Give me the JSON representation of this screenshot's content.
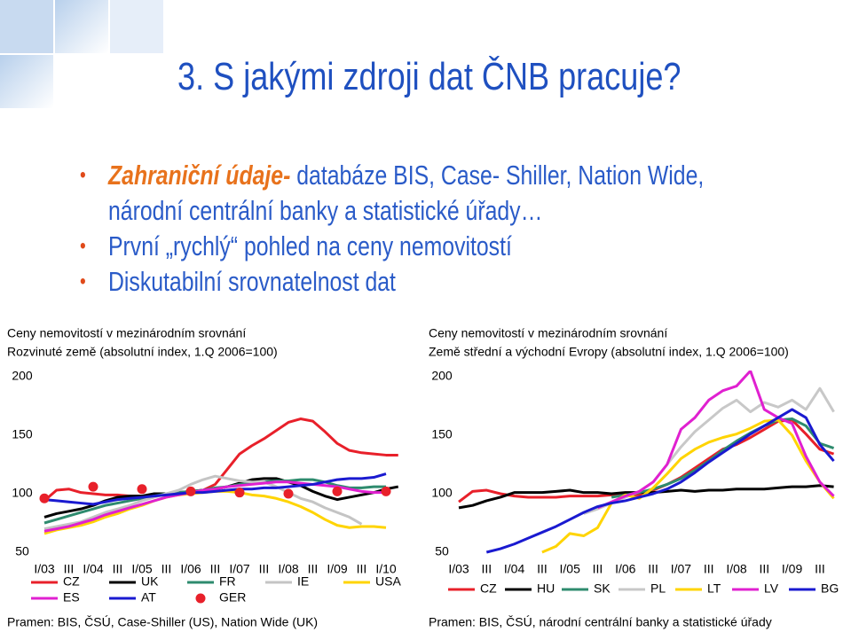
{
  "slide": {
    "title": "3. S jakými zdroji dat ČNB pracuje?",
    "bullets": [
      {
        "emphasis": "Zahraniční údaje-",
        "text": "databáze BIS, Case- Shiller, Nation Wide, národní centrální banky a statistické úřady…"
      },
      {
        "text": "První „rychlý“ pohled na ceny nemovitostí"
      },
      {
        "text": "Diskutabilní srovnatelnost dat"
      }
    ]
  },
  "chart_data": [
    {
      "type": "line",
      "title": "Ceny nemovitostí v mezinárodním srovnání",
      "subtitle": "Rozvinuté země (absolutní index, 1.Q 2006=100)",
      "source": "Pramen: BIS, ČSÚ, Case-Shiller (US), Nation Wide (UK)",
      "categories": [
        "I/03",
        null,
        "III",
        null,
        "I/04",
        null,
        "III",
        null,
        "I/05",
        null,
        "III",
        null,
        "I/06",
        null,
        "III",
        null,
        "I/07",
        null,
        "III",
        null,
        "I/08",
        null,
        "III",
        null,
        "I/09",
        null,
        "III",
        null,
        "I/10",
        null
      ],
      "ylim": [
        50,
        200
      ],
      "yticks": [
        50,
        100,
        150,
        200
      ],
      "series": [
        {
          "name": "CZ",
          "color": "#e8202a",
          "values": [
            94,
            103,
            104,
            101,
            100,
            99,
            99,
            98,
            98,
            99,
            99,
            100,
            101,
            103,
            108,
            121,
            134,
            141,
            147,
            154,
            161,
            164,
            162,
            153,
            143,
            137,
            135,
            134,
            133,
            133
          ]
        },
        {
          "name": "UK",
          "color": "#000000",
          "values": [
            80,
            83,
            85,
            87,
            90,
            94,
            97,
            98,
            98,
            100,
            100,
            101,
            102,
            103,
            104,
            106,
            109,
            112,
            113,
            113,
            110,
            107,
            102,
            98,
            95,
            97,
            99,
            101,
            104,
            106
          ]
        },
        {
          "name": "FR",
          "color": "#2e8b6e",
          "values": [
            75,
            78,
            81,
            84,
            87,
            90,
            92,
            94,
            96,
            98,
            100,
            101,
            102,
            103,
            105,
            106,
            108,
            109,
            110,
            111,
            111,
            112,
            112,
            110,
            107,
            105,
            105,
            106,
            106,
            null
          ]
        },
        {
          "name": "IE",
          "color": "#c4c4c4",
          "values": [
            70,
            72,
            74,
            76,
            80,
            84,
            87,
            90,
            94,
            97,
            100,
            103,
            108,
            112,
            115,
            113,
            111,
            110,
            110,
            106,
            101,
            96,
            93,
            88,
            84,
            80,
            74,
            null,
            null,
            null
          ]
        },
        {
          "name": "USA",
          "color": "#ffd400",
          "values": [
            66,
            69,
            71,
            73,
            76,
            80,
            83,
            87,
            90,
            94,
            97,
            99,
            100,
            101,
            102,
            102,
            101,
            99,
            98,
            96,
            93,
            89,
            84,
            78,
            73,
            71,
            72,
            72,
            71,
            null
          ]
        },
        {
          "name": "ES",
          "color": "#e020d0",
          "values": [
            68,
            70,
            72,
            75,
            78,
            82,
            85,
            88,
            91,
            94,
            97,
            99,
            101,
            103,
            104,
            106,
            107,
            108,
            109,
            110,
            110,
            109,
            108,
            107,
            106,
            104,
            102,
            101,
            101,
            null
          ]
        },
        {
          "name": "AT",
          "color": "#1a1ad0",
          "values": [
            95,
            94,
            93,
            92,
            91,
            93,
            95,
            96,
            97,
            98,
            99,
            100,
            101,
            101,
            102,
            103,
            104,
            104,
            105,
            105,
            106,
            107,
            108,
            110,
            112,
            113,
            113,
            114,
            117,
            null
          ]
        },
        {
          "name": "GER",
          "color": "#e8202a",
          "mode": "markers",
          "values": [
            96,
            null,
            null,
            null,
            106,
            null,
            null,
            null,
            104,
            null,
            null,
            null,
            102,
            null,
            null,
            null,
            101,
            null,
            null,
            null,
            100,
            null,
            null,
            null,
            102,
            null,
            null,
            null,
            102,
            null
          ]
        }
      ]
    },
    {
      "type": "line",
      "title": "Ceny nemovitostí v mezinárodním srovnání",
      "subtitle": "Země střední a východní Evropy (absolutní index, 1.Q 2006=100)",
      "source": "Pramen: BIS, ČSÚ, národní centrální banky a statistické úřady",
      "categories": [
        "I/03",
        null,
        "III",
        null,
        "I/04",
        null,
        "III",
        null,
        "I/05",
        null,
        "III",
        null,
        "I/06",
        null,
        "III",
        null,
        "I/07",
        null,
        "III",
        null,
        "I/08",
        null,
        "III",
        null,
        "I/09",
        null,
        "III",
        null
      ],
      "ylim": [
        50,
        200
      ],
      "yticks": [
        50,
        100,
        150,
        200
      ],
      "series": [
        {
          "name": "CZ",
          "color": "#e8202a",
          "values": [
            93,
            102,
            103,
            100,
            98,
            97,
            97,
            97,
            98,
            98,
            98,
            99,
            99,
            99,
            103,
            108,
            114,
            122,
            130,
            138,
            142,
            148,
            155,
            162,
            163,
            151,
            138,
            134
          ]
        },
        {
          "name": "HU",
          "color": "#000000",
          "values": [
            88,
            90,
            94,
            97,
            101,
            101,
            101,
            102,
            103,
            101,
            101,
            100,
            101,
            101,
            101,
            102,
            103,
            102,
            103,
            103,
            104,
            104,
            104,
            105,
            106,
            106,
            107,
            106
          ]
        },
        {
          "name": "SK",
          "color": "#2e8b6e",
          "values": [
            null,
            null,
            null,
            null,
            null,
            null,
            null,
            null,
            null,
            null,
            null,
            97,
            99,
            101,
            104,
            108,
            113,
            120,
            128,
            137,
            145,
            152,
            158,
            163,
            164,
            158,
            143,
            139
          ]
        },
        {
          "name": "PL",
          "color": "#c8c8c8",
          "values": [
            null,
            null,
            null,
            null,
            null,
            null,
            null,
            null,
            null,
            83,
            87,
            92,
            97,
            102,
            110,
            125,
            140,
            153,
            163,
            173,
            180,
            170,
            178,
            174,
            180,
            172,
            190,
            170
          ]
        },
        {
          "name": "LT",
          "color": "#ffd400",
          "values": [
            null,
            null,
            null,
            null,
            null,
            null,
            50,
            55,
            66,
            64,
            71,
            92,
            99,
            96,
            105,
            117,
            130,
            138,
            144,
            148,
            151,
            156,
            162,
            163,
            150,
            128,
            110,
            96
          ]
        },
        {
          "name": "LV",
          "color": "#e020d0",
          "values": [
            null,
            null,
            null,
            null,
            null,
            null,
            null,
            null,
            null,
            null,
            88,
            93,
            98,
            102,
            110,
            125,
            155,
            165,
            180,
            188,
            192,
            205,
            172,
            165,
            160,
            132,
            110,
            98
          ]
        },
        {
          "name": "BG",
          "color": "#1a1ad0",
          "values": [
            null,
            null,
            50,
            53,
            57,
            62,
            67,
            72,
            78,
            84,
            89,
            92,
            94,
            97,
            100,
            104,
            110,
            118,
            127,
            135,
            143,
            151,
            158,
            165,
            172,
            165,
            142,
            128
          ]
        }
      ]
    }
  ]
}
